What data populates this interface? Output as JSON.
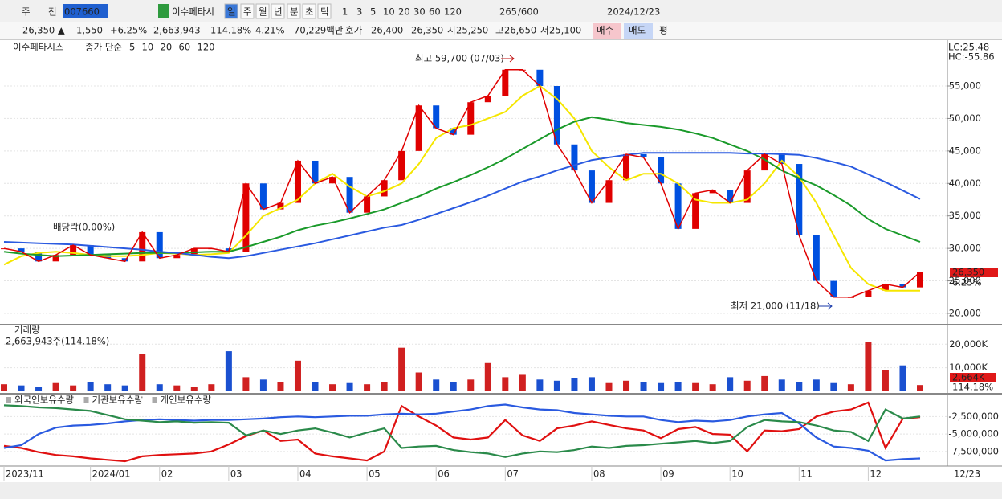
{
  "toolbar": {
    "market": "주",
    "prev": "전",
    "code": "007660",
    "name": "이수페타시",
    "periods": [
      "일",
      "주",
      "월",
      "년",
      "분",
      "초",
      "틱"
    ],
    "units": [
      "1",
      "3",
      "5",
      "10",
      "20",
      "30",
      "60",
      "120"
    ],
    "count": "265",
    "max": "/600",
    "date": "2024/12/23"
  },
  "quote": {
    "price": "26,350 ▲",
    "change": "1,550",
    "rate": "+6.25%",
    "volume": "2,663,943",
    "vol_rate": "114.18%",
    "turnover": "4.21%",
    "amount": "70,229백만",
    "bid_label": "호가",
    "ask": "26,400",
    "bid": "26,350",
    "open_label": "시",
    "open": "25,250",
    "high_label": "고",
    "high": "26,650",
    "low_label": "저",
    "low": "25,100",
    "buy": "매수",
    "sell": "매도",
    "avg": "평"
  },
  "chart": {
    "categories": [
      "2023/11",
      null,
      null,
      null,
      null,
      "2024/01",
      null,
      null,
      null,
      "02",
      null,
      null,
      null,
      "03",
      null,
      null,
      null,
      "04",
      null,
      null,
      null,
      "05",
      null,
      null,
      null,
      "06",
      null,
      null,
      null,
      "07",
      null,
      null,
      null,
      null,
      "08",
      null,
      null,
      null,
      "09",
      null,
      null,
      null,
      "10",
      null,
      null,
      null,
      "11",
      null,
      null,
      null,
      "12",
      null,
      null,
      null
    ],
    "end_date": "12/23",
    "price": {
      "name": "이수페타시스",
      "legend": "종가 단순",
      "ma_legend": [
        {
          "name": "5",
          "color": "#e00000"
        },
        {
          "name": "10",
          "color": "#f08c00"
        },
        {
          "name": "20",
          "color": "#e8d800"
        },
        {
          "name": "60",
          "color": "#1a9a2a"
        },
        {
          "name": "120",
          "color": "#2a5ae0"
        }
      ],
      "close": [
        30000,
        29500,
        28000,
        29000,
        30500,
        29000,
        28500,
        28000,
        32500,
        28500,
        29000,
        30000,
        30000,
        29500,
        40000,
        36000,
        37000,
        43500,
        40000,
        41000,
        35500,
        38000,
        40500,
        45000,
        52000,
        48500,
        47500,
        52500,
        53500,
        57500,
        57500,
        55000,
        46000,
        42000,
        37000,
        40500,
        44500,
        44000,
        40000,
        33000,
        38500,
        39000,
        37000,
        42000,
        44500,
        43000,
        32000,
        25000,
        22500,
        22500,
        23500,
        24500,
        24000,
        26350
      ],
      "up_color": "#e00000",
      "down_color": "#0050e0",
      "ma_series": [
        {
          "color": "#f5e600",
          "values": [
            27500,
            28800,
            29300,
            29500,
            29300,
            29000,
            28800,
            28800,
            29000,
            29300,
            29200,
            29000,
            29100,
            29300,
            32000,
            35000,
            36200,
            37500,
            40000,
            41500,
            39500,
            38000,
            38800,
            40000,
            43000,
            47000,
            48500,
            49000,
            50000,
            51000,
            53500,
            55000,
            53000,
            50000,
            45000,
            42500,
            40500,
            41500,
            41500,
            40000,
            37500,
            37000,
            37000,
            37500,
            40000,
            43500,
            41000,
            37000,
            32000,
            27000,
            24500,
            23500,
            23500,
            23500
          ]
        },
        {
          "color": "#1a9a2a",
          "values": [
            29500,
            29200,
            29000,
            28800,
            28900,
            29000,
            29100,
            29200,
            29300,
            29300,
            29300,
            29400,
            29500,
            29500,
            30200,
            31000,
            31800,
            32800,
            33500,
            34000,
            34600,
            35300,
            36000,
            37000,
            38000,
            39200,
            40200,
            41300,
            42500,
            43800,
            45300,
            46800,
            48300,
            49500,
            50200,
            49800,
            49300,
            49000,
            48700,
            48300,
            47700,
            47000,
            46000,
            45000,
            43700,
            42000,
            40800,
            39700,
            38200,
            36600,
            34500,
            33000,
            32000,
            31000
          ]
        },
        {
          "color": "#2a5ae0",
          "values": [
            31000,
            30900,
            30800,
            30700,
            30600,
            30400,
            30200,
            30000,
            29800,
            29500,
            29300,
            29000,
            28700,
            28500,
            28800,
            29300,
            29800,
            30300,
            30800,
            31400,
            32000,
            32600,
            33200,
            33600,
            34400,
            35300,
            36200,
            37100,
            38100,
            39200,
            40300,
            41100,
            42000,
            42800,
            43600,
            44000,
            44400,
            44700,
            44700,
            44700,
            44700,
            44700,
            44700,
            44600,
            44600,
            44500,
            44400,
            43900,
            43300,
            42600,
            41400,
            40200,
            38900,
            37600
          ]
        }
      ],
      "ylim": [
        18390,
        62050
      ],
      "yticks": [
        {
          "value": 20000,
          "label": "20,000"
        },
        {
          "value": 25000,
          "label": "25,000"
        },
        {
          "value": 30000,
          "label": "30,000"
        },
        {
          "value": 35000,
          "label": "35,000"
        },
        {
          "value": 40000,
          "label": "40,000"
        },
        {
          "value": 45000,
          "label": "45,000"
        },
        {
          "value": 50000,
          "label": "50,000"
        },
        {
          "value": 55000,
          "label": "55,000"
        }
      ],
      "high_note": "최고 59,700 (07/03)",
      "low_note": "최저 21,000 (11/18)",
      "dividend_note": "배당락(0.00%)",
      "lc": "LC:25.48",
      "hc": "HC:-55.86",
      "last_price": "26,350",
      "last_rate": "6.25%"
    },
    "volume": {
      "name": "거래량",
      "summary": "2,663,943주(114.18%)",
      "up_color": "#d02020",
      "down_color": "#1a50d0",
      "values": [
        3000,
        2500,
        2000,
        3500,
        2500,
        4000,
        3000,
        2500,
        16000,
        3000,
        2500,
        2000,
        3000,
        17000,
        6000,
        5000,
        4000,
        13000,
        4000,
        3000,
        3500,
        3000,
        4000,
        18500,
        8000,
        5000,
        4000,
        5000,
        12000,
        6000,
        7000,
        5000,
        4500,
        5500,
        6000,
        3500,
        4500,
        4000,
        3500,
        4000,
        3500,
        3000,
        6000,
        4500,
        6500,
        5000,
        4000,
        5000,
        3500,
        3000,
        21000,
        9000,
        11000,
        2664
      ],
      "ylim": [
        0,
        27930
      ],
      "yticks": [
        {
          "value": 10000,
          "label": "10,000K"
        },
        {
          "value": 20000,
          "label": "20,000K"
        }
      ],
      "last": "2,664K",
      "last_rate": "114.18%"
    },
    "holdings": {
      "ylim": [
        -9590000,
        640000
      ],
      "yticks": [
        {
          "value": -2500000,
          "label": "-2,500,000"
        },
        {
          "value": -5000000,
          "label": "-5,000,000"
        },
        {
          "value": -7500000,
          "label": "-7,500,000"
        }
      ],
      "series": [
        {
          "name": "외국인보유수량",
          "color": "#e01010",
          "values": [
            -6700000,
            -7000000,
            -7600000,
            -8000000,
            -8200000,
            -8500000,
            -8700000,
            -8900000,
            -8200000,
            -8000000,
            -7900000,
            -7800000,
            -7500000,
            -6500000,
            -5300000,
            -4500000,
            -6000000,
            -5800000,
            -7800000,
            -8200000,
            -8500000,
            -8800000,
            -7500000,
            -1000000,
            -2500000,
            -3800000,
            -5500000,
            -5800000,
            -5500000,
            -3000000,
            -5200000,
            -6000000,
            -4200000,
            -3800000,
            -3200000,
            -3700000,
            -4200000,
            -4500000,
            -5600000,
            -4300000,
            -4000000,
            -5000000,
            -5100000,
            -7500000,
            -4500000,
            -4600000,
            -4300000,
            -2500000,
            -1800000,
            -1500000,
            -500000,
            -7000000,
            -2800000,
            -2600000
          ]
        },
        {
          "name": "기관보유수량",
          "color": "#2a5ae0",
          "values": [
            -7000000,
            -6600000,
            -5000000,
            -4100000,
            -3800000,
            -3700000,
            -3500000,
            -3200000,
            -3000000,
            -2900000,
            -3000000,
            -3100000,
            -3000000,
            -3000000,
            -2900000,
            -2800000,
            -2600000,
            -2500000,
            -2600000,
            -2500000,
            -2400000,
            -2400000,
            -2200000,
            -2100000,
            -2200000,
            -2100000,
            -1800000,
            -1500000,
            -1000000,
            -800000,
            -1200000,
            -1500000,
            -1600000,
            -2000000,
            -2200000,
            -2400000,
            -2500000,
            -2500000,
            -3000000,
            -3300000,
            -3100000,
            -3200000,
            -3000000,
            -2500000,
            -2200000,
            -2000000,
            -3500000,
            -5500000,
            -6800000,
            -7000000,
            -7400000,
            -8800000,
            -8600000,
            -8500000
          ]
        },
        {
          "name": "개인보유수량",
          "color": "#2a8a4a",
          "values": [
            -900000,
            -1000000,
            -1200000,
            -1300000,
            -1500000,
            -1700000,
            -2300000,
            -2900000,
            -3100000,
            -3300000,
            -3200000,
            -3400000,
            -3300000,
            -3400000,
            -5200000,
            -4500000,
            -5000000,
            -4500000,
            -4200000,
            -4800000,
            -5500000,
            -4800000,
            -4200000,
            -7000000,
            -6800000,
            -6700000,
            -7300000,
            -7600000,
            -7800000,
            -8300000,
            -7800000,
            -7500000,
            -7600000,
            -7300000,
            -6800000,
            -7000000,
            -6700000,
            -6600000,
            -6400000,
            -6200000,
            -6000000,
            -6300000,
            -6000000,
            -4000000,
            -3000000,
            -3200000,
            -3300000,
            -3800000,
            -4500000,
            -4700000,
            -6000000,
            -1500000,
            -2800000,
            -2500000
          ]
        }
      ]
    }
  }
}
